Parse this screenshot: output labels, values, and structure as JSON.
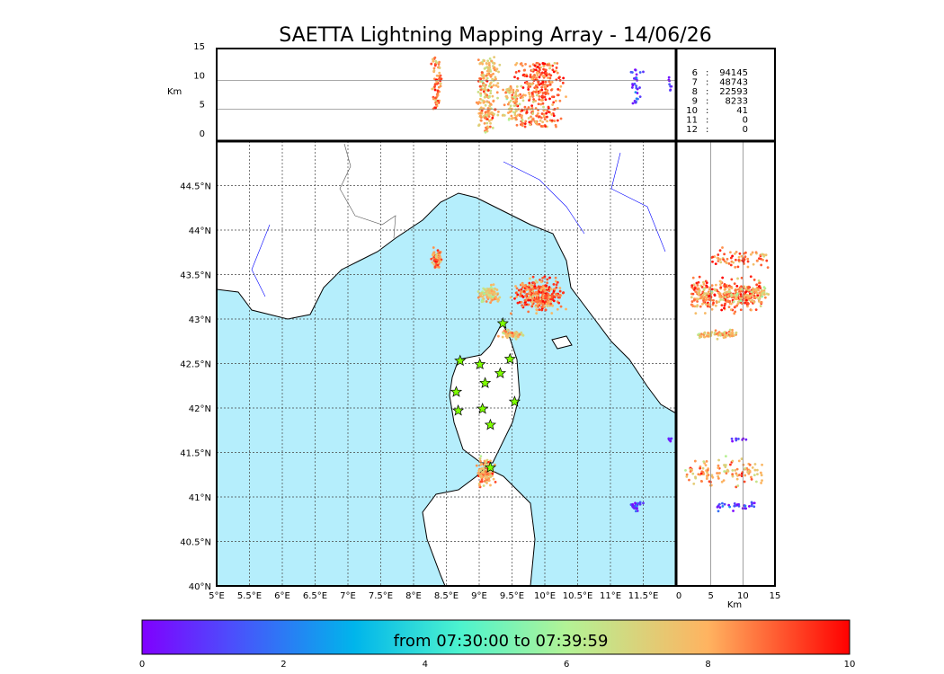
{
  "chart_data": {
    "type": "scatter",
    "title": "SAETTA Lightning Mapping Array - 14/06/26",
    "map": {
      "lon_range": [
        5,
        12
      ],
      "lat_range": [
        40,
        45
      ],
      "lon_ticks": [
        "5°E",
        "5.5°E",
        "6°E",
        "6.5°E",
        "7°E",
        "7.5°E",
        "8°E",
        "8.5°E",
        "9°E",
        "9.5°E",
        "10°E",
        "10.5°E",
        "11°E",
        "11.5°E"
      ],
      "lat_ticks": [
        "40°N",
        "40.5°N",
        "41°N",
        "41.5°N",
        "42°N",
        "42.5°N",
        "43°N",
        "43.5°N",
        "44°N",
        "44.5°N"
      ],
      "grid": true
    },
    "altitude_panel": {
      "ylabel": "Km",
      "range": [
        0,
        15
      ],
      "ticks": [
        "0",
        "5",
        "10",
        "15"
      ]
    },
    "side_panel": {
      "xlabel": "Km",
      "range": [
        0,
        15
      ],
      "ticks": [
        "0",
        "5",
        "10",
        "15"
      ]
    },
    "source_counts": [
      {
        "label": "6",
        "value": "94145",
        "highlight": false
      },
      {
        "label": "7",
        "value": "48743",
        "highlight": true
      },
      {
        "label": "8",
        "value": "22593",
        "highlight": false
      },
      {
        "label": "9",
        "value": "8233",
        "highlight": false
      },
      {
        "label": "10",
        "value": "41",
        "highlight": false
      },
      {
        "label": "11",
        "value": "0",
        "highlight": false
      },
      {
        "label": "12",
        "value": "0",
        "highlight": false
      }
    ],
    "clusters": [
      {
        "lon": 9.9,
        "lat": 43.27,
        "spread": [
          0.25,
          0.12
        ],
        "alt": [
          2,
          13
        ],
        "time": 8.8,
        "n": 320
      },
      {
        "lon": 9.15,
        "lat": 43.28,
        "spread": [
          0.12,
          0.06
        ],
        "alt": [
          3,
          14
        ],
        "time": 7.5,
        "n": 90
      },
      {
        "lon": 8.35,
        "lat": 43.68,
        "spread": [
          0.05,
          0.07
        ],
        "alt": [
          5,
          14
        ],
        "time": 8.5,
        "n": 70
      },
      {
        "lon": 9.5,
        "lat": 42.83,
        "spread": [
          0.12,
          0.03
        ],
        "alt": [
          3,
          9
        ],
        "time": 7.6,
        "n": 80
      },
      {
        "lon": 9.1,
        "lat": 41.28,
        "spread": [
          0.1,
          0.1
        ],
        "alt": [
          1,
          13
        ],
        "time": 8.0,
        "n": 120
      },
      {
        "lon": 11.4,
        "lat": 40.9,
        "spread": [
          0.08,
          0.04
        ],
        "alt": [
          6,
          12
        ],
        "time": 1.0,
        "n": 30
      },
      {
        "lon": 11.9,
        "lat": 41.65,
        "spread": [
          0.02,
          0.02
        ],
        "alt": [
          8,
          11
        ],
        "time": 0.5,
        "n": 8
      }
    ],
    "stations": [
      [
        8.71,
        42.53
      ],
      [
        9.01,
        42.49
      ],
      [
        9.36,
        42.95
      ],
      [
        9.47,
        42.55
      ],
      [
        9.32,
        42.39
      ],
      [
        9.09,
        42.28
      ],
      [
        8.65,
        42.18
      ],
      [
        8.68,
        41.97
      ],
      [
        9.05,
        41.99
      ],
      [
        9.54,
        42.07
      ],
      [
        9.17,
        41.81
      ],
      [
        9.17,
        41.33
      ]
    ],
    "colorbar": {
      "label": "from 07:30:00 to 07:39:59",
      "range": [
        0,
        10
      ],
      "ticks": [
        "0",
        "2",
        "4",
        "6",
        "8",
        "10"
      ]
    }
  }
}
